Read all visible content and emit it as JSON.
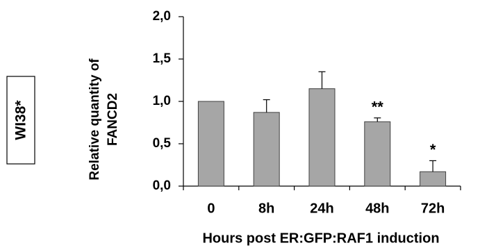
{
  "chart_data": {
    "type": "bar",
    "sample_label": "WI38*",
    "categories": [
      "0",
      "8h",
      "24h",
      "48h",
      "72h"
    ],
    "values": [
      1.0,
      0.87,
      1.15,
      0.76,
      0.17
    ],
    "error_upper": [
      0.005,
      0.15,
      0.2,
      0.045,
      0.13
    ],
    "significance": [
      "",
      "",
      "",
      "**",
      "*"
    ],
    "xlabel": "Hours post ER:GFP:RAF1 induction",
    "ylabel_lines": [
      "Relative quantity of",
      "FANCD2"
    ],
    "ylim": [
      0,
      2.0
    ],
    "yticks": [
      0,
      0.5,
      1.0,
      1.5,
      2.0
    ],
    "ytick_labels": [
      "0,0",
      "0,5",
      "1,0",
      "1,5",
      "2,0"
    ],
    "grid": false,
    "legend": "none",
    "bar_color": "#a6a6a6",
    "bar_edge_color": "#404040",
    "axis_color": "#000000"
  }
}
